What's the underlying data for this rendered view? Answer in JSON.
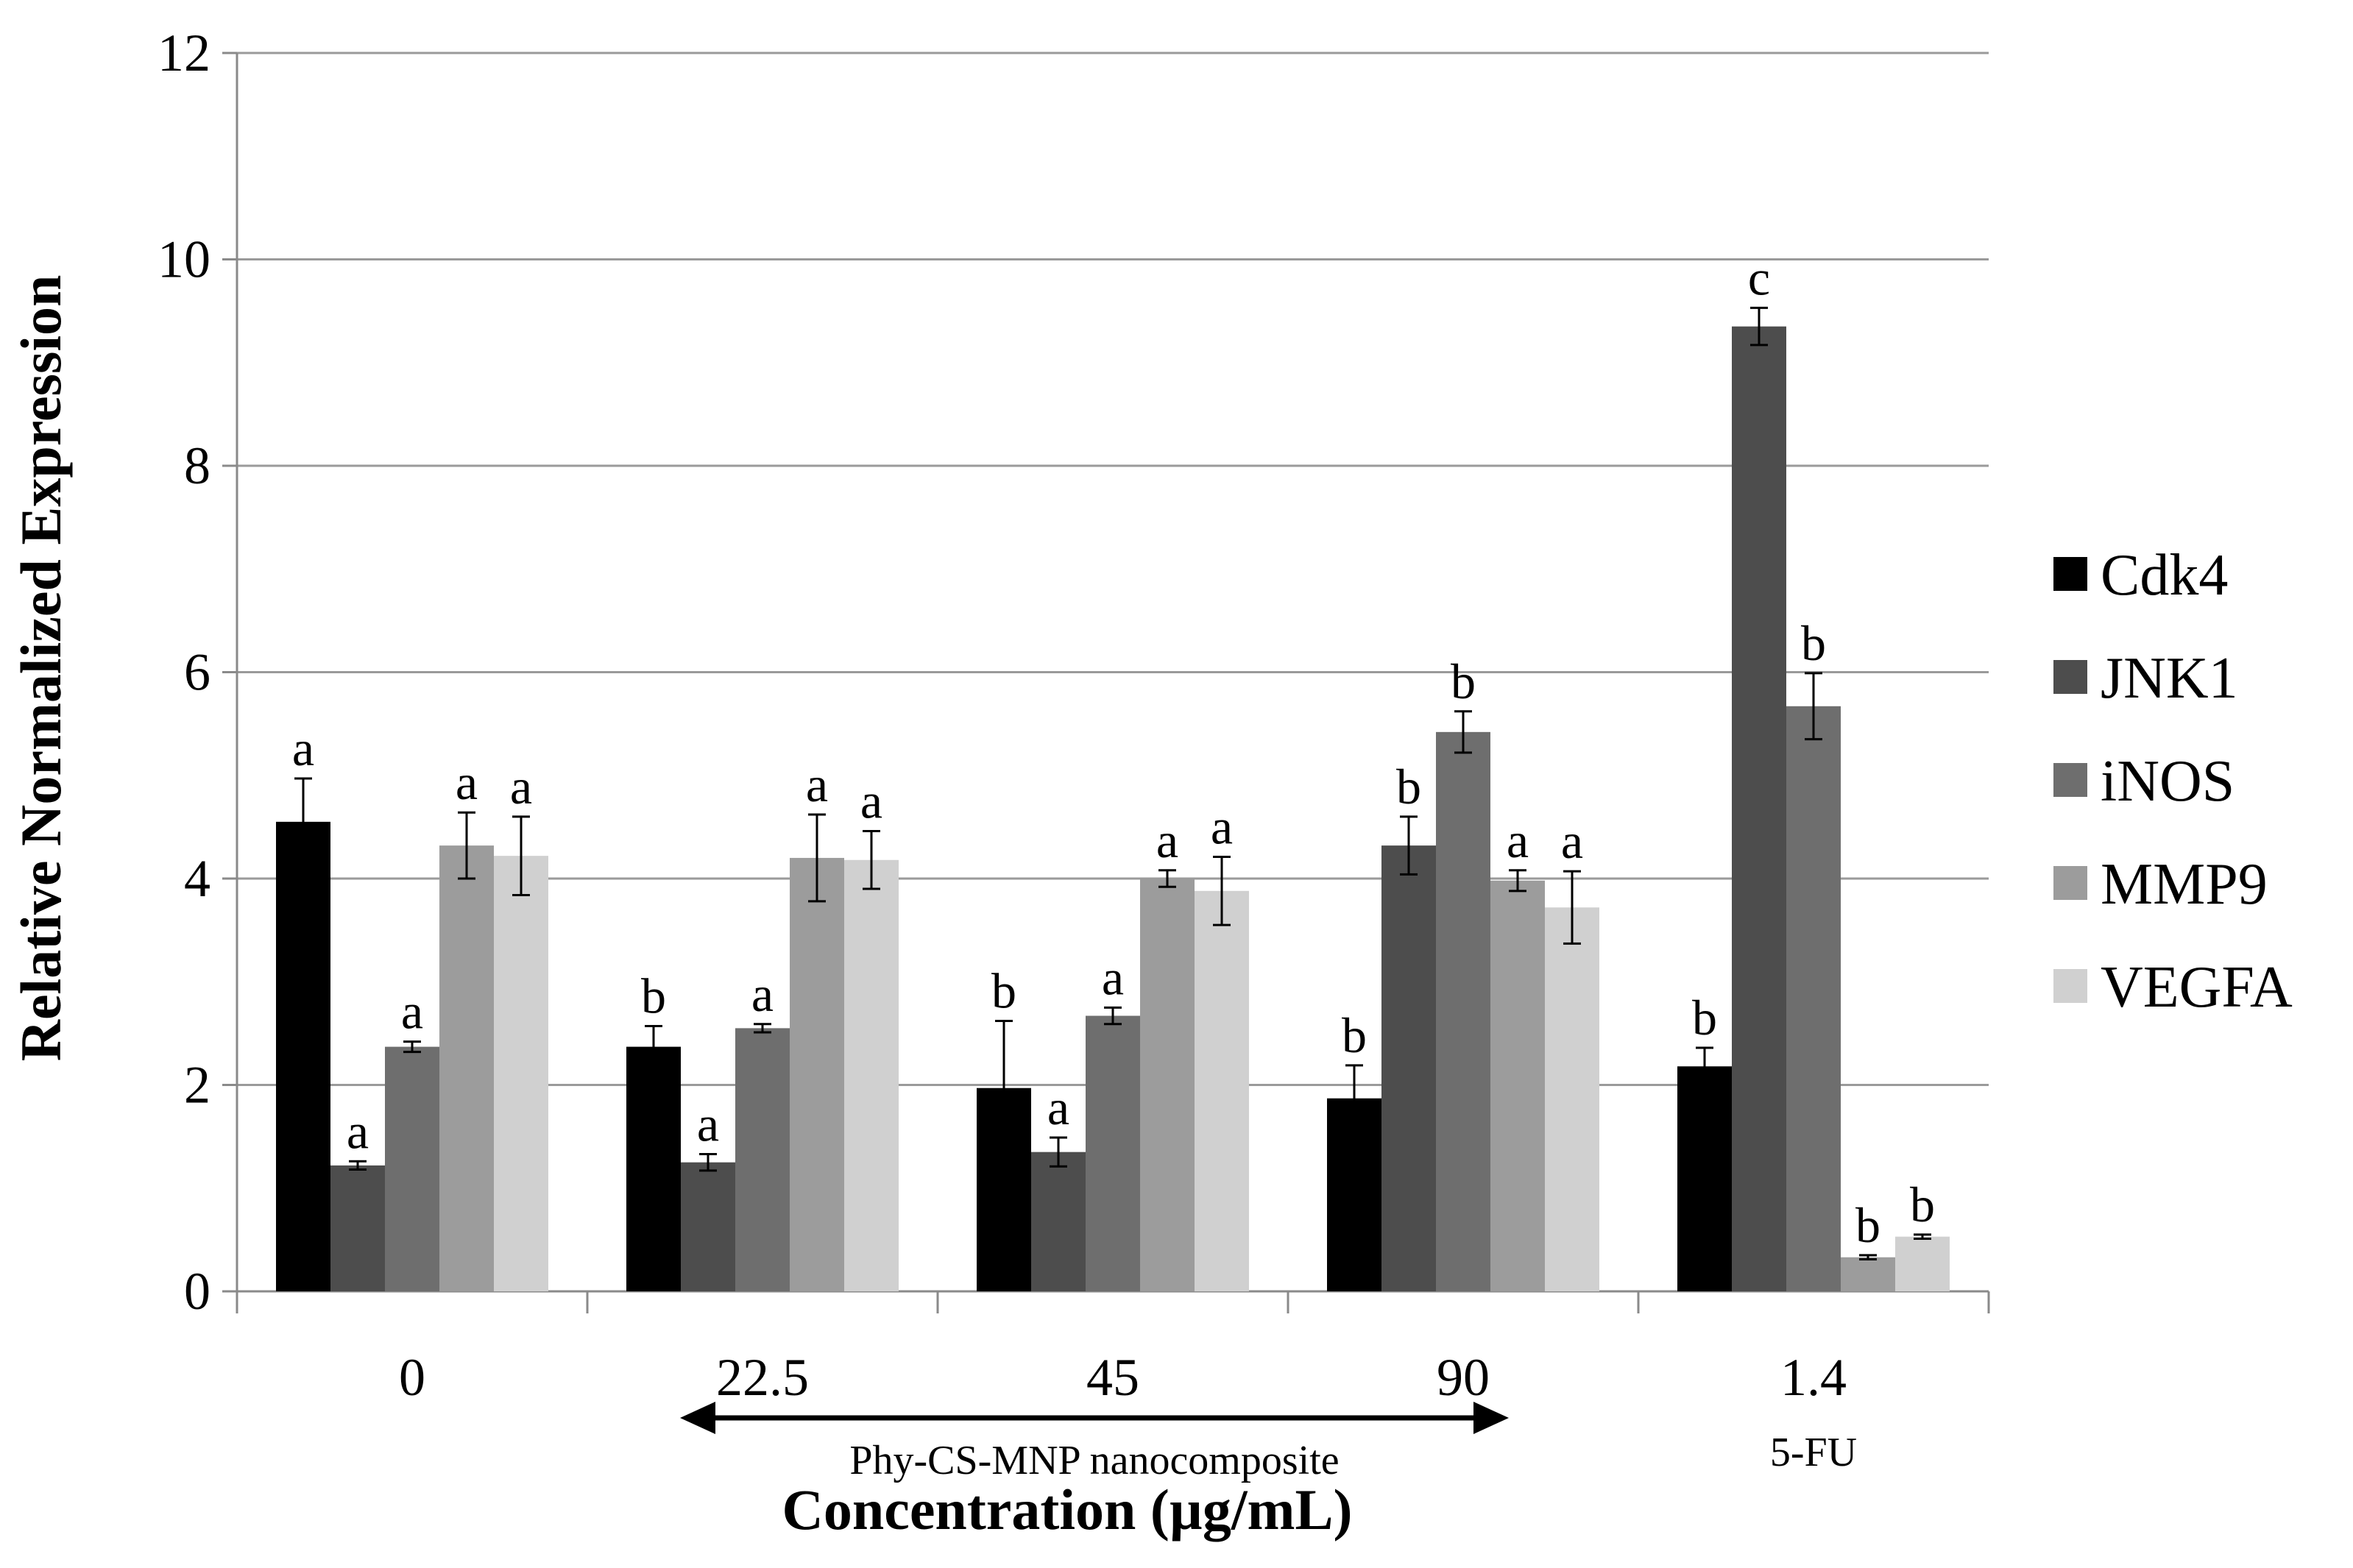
{
  "chart_data": {
    "type": "bar",
    "title": "",
    "ylabel": "Relative Normalized Expression",
    "xlabel": "Concentration (µg/mL)",
    "ylim": [
      0,
      12
    ],
    "yticks": [
      0,
      2,
      4,
      6,
      8,
      10,
      12
    ],
    "grid": true,
    "legend_position": "right",
    "categories": [
      "0",
      "22.5",
      "45",
      "90",
      "1.4"
    ],
    "category_sublabels": [
      "",
      "",
      "",
      "",
      "5-FU"
    ],
    "bracket_annotation": {
      "label": "Phy-CS-MNP nanocomposite",
      "from_category": "22.5",
      "to_category": "90"
    },
    "series": [
      {
        "name": "Cdk4",
        "color": "#000000",
        "values": [
          4.55,
          2.37,
          1.97,
          1.87,
          2.18
        ],
        "errors": [
          0.42,
          0.2,
          0.65,
          0.32,
          0.18
        ],
        "labels": [
          "a",
          "b",
          "b",
          "b",
          "b"
        ]
      },
      {
        "name": "JNK1",
        "color": "#4d4d4d",
        "values": [
          1.22,
          1.25,
          1.35,
          4.32,
          9.35
        ],
        "errors": [
          0.04,
          0.08,
          0.14,
          0.28,
          0.18
        ],
        "labels": [
          "a",
          "a",
          "a",
          "b",
          "c"
        ]
      },
      {
        "name": "iNOS",
        "color": "#6e6e6e",
        "values": [
          2.37,
          2.55,
          2.67,
          5.42,
          5.67
        ],
        "errors": [
          0.05,
          0.04,
          0.08,
          0.2,
          0.32
        ],
        "labels": [
          "a",
          "a",
          "a",
          "b",
          "b"
        ]
      },
      {
        "name": "MMP9",
        "color": "#9c9c9c",
        "values": [
          4.32,
          4.2,
          4.0,
          3.98,
          0.33
        ],
        "errors": [
          0.32,
          0.42,
          0.08,
          0.1,
          0.02
        ],
        "labels": [
          "a",
          "a",
          "a",
          "a",
          "b"
        ]
      },
      {
        "name": "VEGFA",
        "color": "#d0d0d0",
        "values": [
          4.22,
          4.18,
          3.88,
          3.72,
          0.53
        ],
        "errors": [
          0.38,
          0.28,
          0.33,
          0.35,
          0.02
        ],
        "labels": [
          "a",
          "a",
          "a",
          "a",
          "b"
        ]
      }
    ]
  }
}
